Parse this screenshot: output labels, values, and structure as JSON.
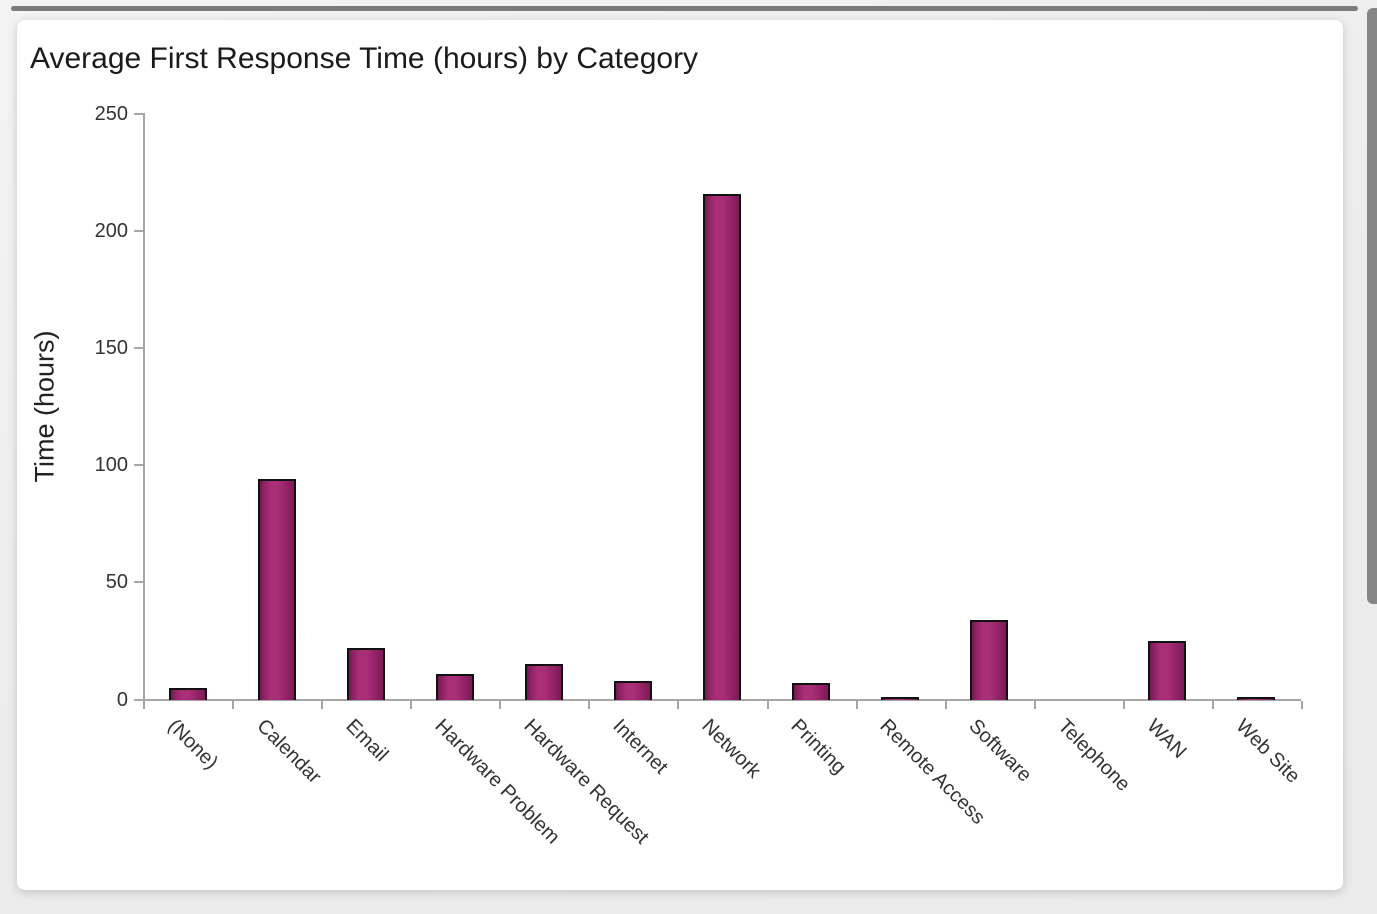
{
  "chart_data": {
    "type": "bar",
    "title": "Average First Response Time (hours) by Category",
    "ylabel": "Time (hours)",
    "xlabel": "",
    "categories": [
      "(None)",
      "Calendar",
      "Email",
      "Hardware Problem",
      "Hardware Request",
      "Internet",
      "Network",
      "Printing",
      "Remote Access",
      "Software",
      "Telephone",
      "WAN",
      "Web Site"
    ],
    "values": [
      5,
      94,
      22,
      11,
      15,
      8,
      216,
      7,
      1,
      34,
      0,
      25,
      0.4
    ],
    "yticks": [
      0,
      50,
      100,
      150,
      200,
      250
    ],
    "ylim": [
      0,
      250
    ],
    "grid": false,
    "legend_position": "none",
    "bar_color_center": "#a93077",
    "bar_color_edge_left": "#701a4e",
    "bar_color_edge_right": "#7c1b55",
    "bar_border_color": "#111111",
    "axis_color": "#a6a6a6",
    "title_color": "#1a1a1a",
    "tick_label_color": "#333333"
  }
}
